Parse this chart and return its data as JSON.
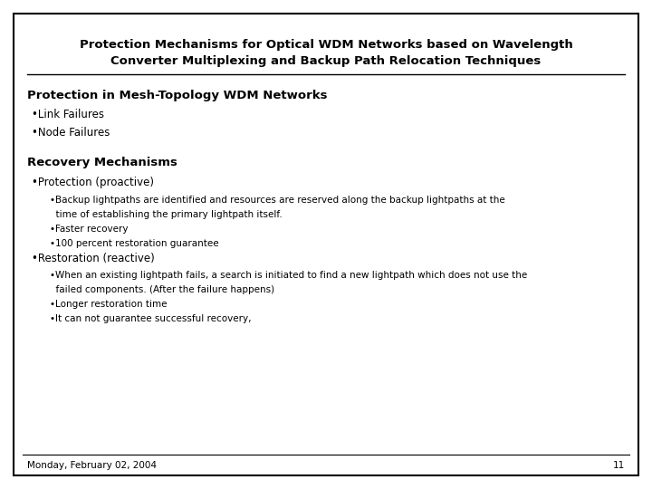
{
  "title_line1": "Protection Mechanisms for Optical WDM Networks based on Wavelength",
  "title_line2": "Converter Multiplexing and Backup Path Relocation Techniques",
  "background_color": "#ffffff",
  "border_color": "#000000",
  "text_color": "#000000",
  "footer_date": "Monday, February 02, 2004",
  "footer_page": "11",
  "section1_heading": "Protection in Mesh-Topology WDM Networks",
  "section1_bullets": [
    "•Link Failures",
    "•Node Failures"
  ],
  "section2_heading": "Recovery Mechanisms",
  "section2_items": [
    {
      "level": 1,
      "text": "•Protection (proactive)"
    },
    {
      "level": 2,
      "text": "•Backup lightpaths are identified and resources are reserved along the backup lightpaths at the"
    },
    {
      "level": 2,
      "text": "  time of establishing the primary lightpath itself."
    },
    {
      "level": 2,
      "text": "•Faster recovery"
    },
    {
      "level": 2,
      "text": "•100 percent restoration guarantee"
    },
    {
      "level": 1,
      "text": "•Restoration (reactive)"
    },
    {
      "level": 2,
      "text": "•When an existing lightpath fails, a search is initiated to find a new lightpath which does not use the"
    },
    {
      "level": 2,
      "text": "  failed components. (After the failure happens)"
    },
    {
      "level": 2,
      "text": "•Longer restoration time"
    },
    {
      "level": 2,
      "text": "•It can not guarantee successful recovery,"
    }
  ],
  "title_fontsize": 9.5,
  "heading_fontsize": 9.5,
  "bullet1_fontsize": 8.5,
  "bullet2_fontsize": 7.5,
  "footer_fontsize": 7.5
}
